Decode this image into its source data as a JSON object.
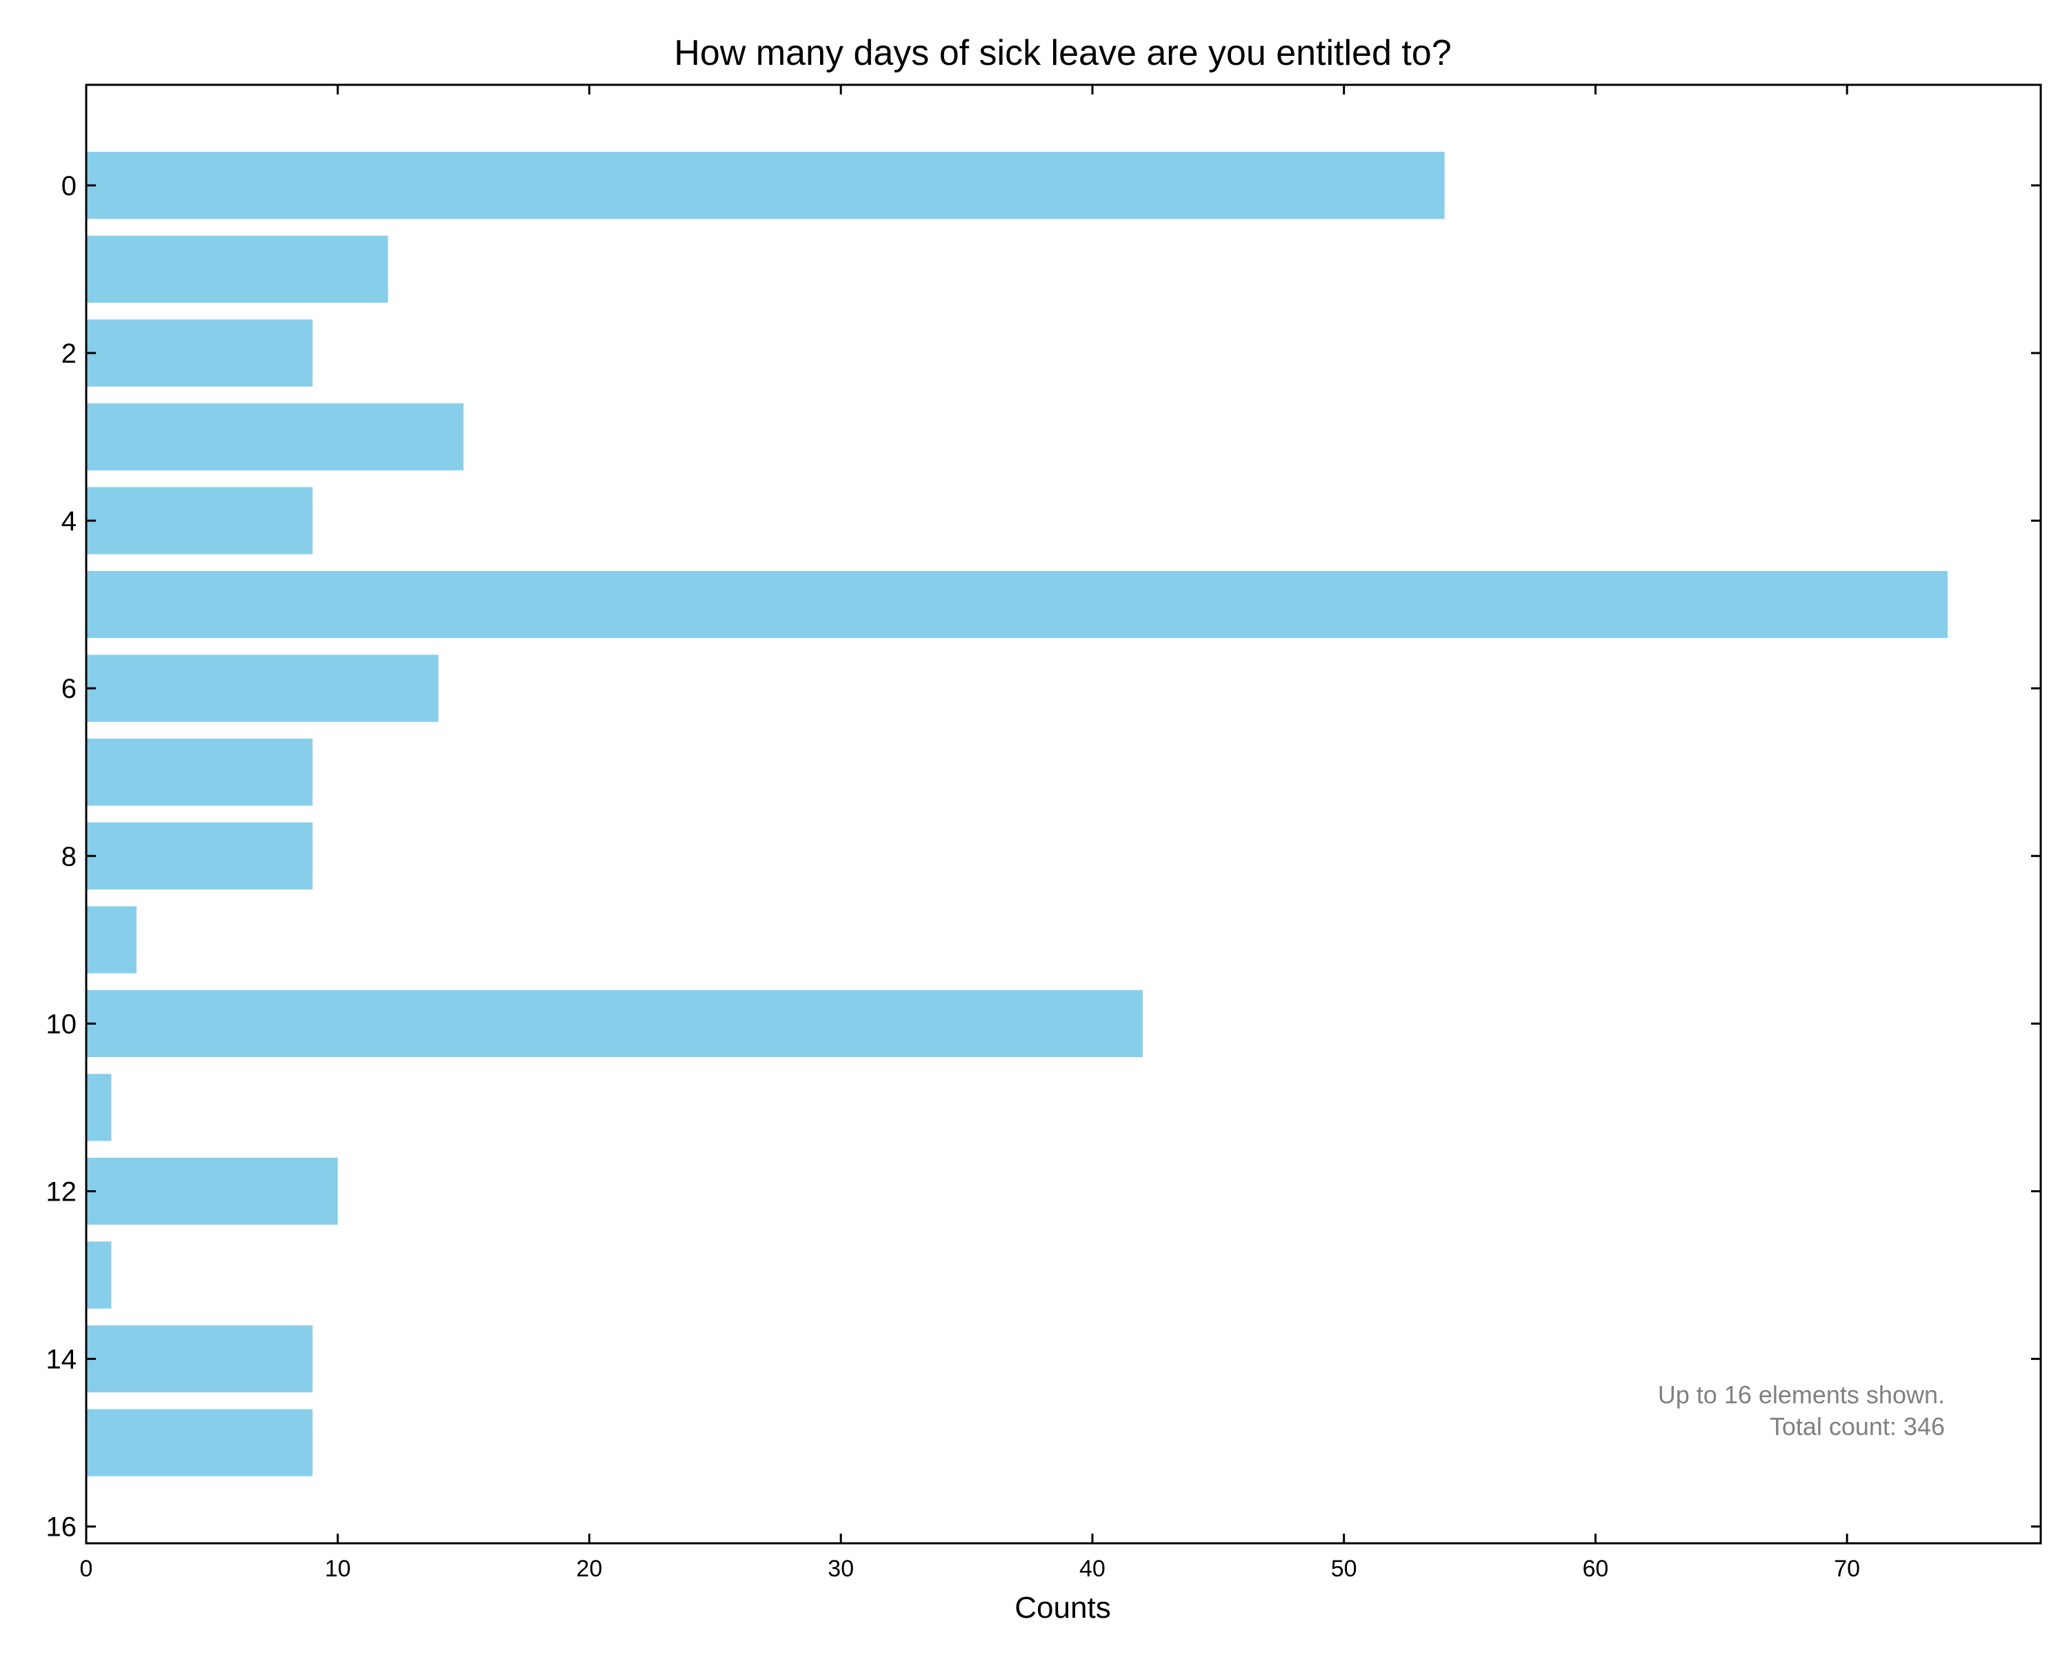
{
  "chart_data": {
    "type": "bar",
    "orientation": "horizontal",
    "title": "How many days of sick leave are you entitled to?",
    "xlabel": "Counts",
    "ylabel": "",
    "categories": [
      0,
      1,
      2,
      3,
      4,
      5,
      6,
      7,
      8,
      9,
      10,
      11,
      12,
      13,
      14,
      15
    ],
    "values": [
      54,
      12,
      9,
      15,
      9,
      74,
      14,
      9,
      9,
      2,
      42,
      1,
      10,
      1,
      9,
      9
    ],
    "xlim": [
      0,
      77.7
    ],
    "ylim": [
      16.2,
      -1.2
    ],
    "xticks": [
      0,
      10,
      20,
      30,
      40,
      50,
      60,
      70
    ],
    "yticks": [
      0,
      2,
      4,
      6,
      8,
      10,
      12,
      14,
      16
    ],
    "bar_color": "#87CEEB",
    "grid": false,
    "annotation": {
      "line1": "Up to 16 elements shown.",
      "line2": "Total count: 346",
      "placement": "bottom-right"
    }
  }
}
